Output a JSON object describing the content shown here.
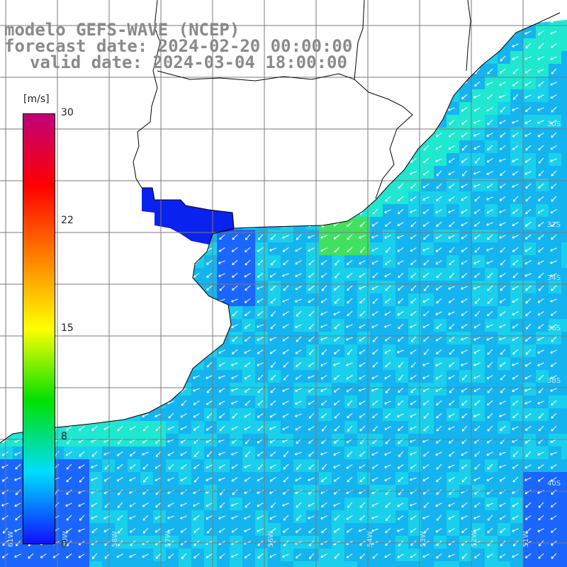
{
  "titles": {
    "line1": "modelo GEFS-WAVE (NCEP)",
    "line2": "forecast date: 2024-02-20 00:00:00",
    "line3": "valid date: 2024-03-04 18:00:00"
  },
  "colorbar": {
    "unit": "[m/s]",
    "ticks": [
      "30",
      "22",
      "15",
      "8",
      "0"
    ],
    "colors": [
      "#1010ff",
      "#00ddff",
      "#00e000",
      "#ffff00",
      "#ff8000",
      "#ff0000",
      "#c0007a"
    ]
  },
  "map": {
    "lon_labels": [
      "61W",
      "60W",
      "58W",
      "57W",
      "56W",
      "54W",
      "53W",
      "52W",
      "51W"
    ],
    "lat_labels": [
      "30S",
      "32S",
      "34S",
      "36S",
      "38S",
      "40S"
    ],
    "sea_colors": [
      "#0a22ee",
      "#1a66ff",
      "#14b4f0",
      "#18d0ec",
      "#1ee8d0",
      "#40e060"
    ],
    "land_color": "#ffffff"
  }
}
